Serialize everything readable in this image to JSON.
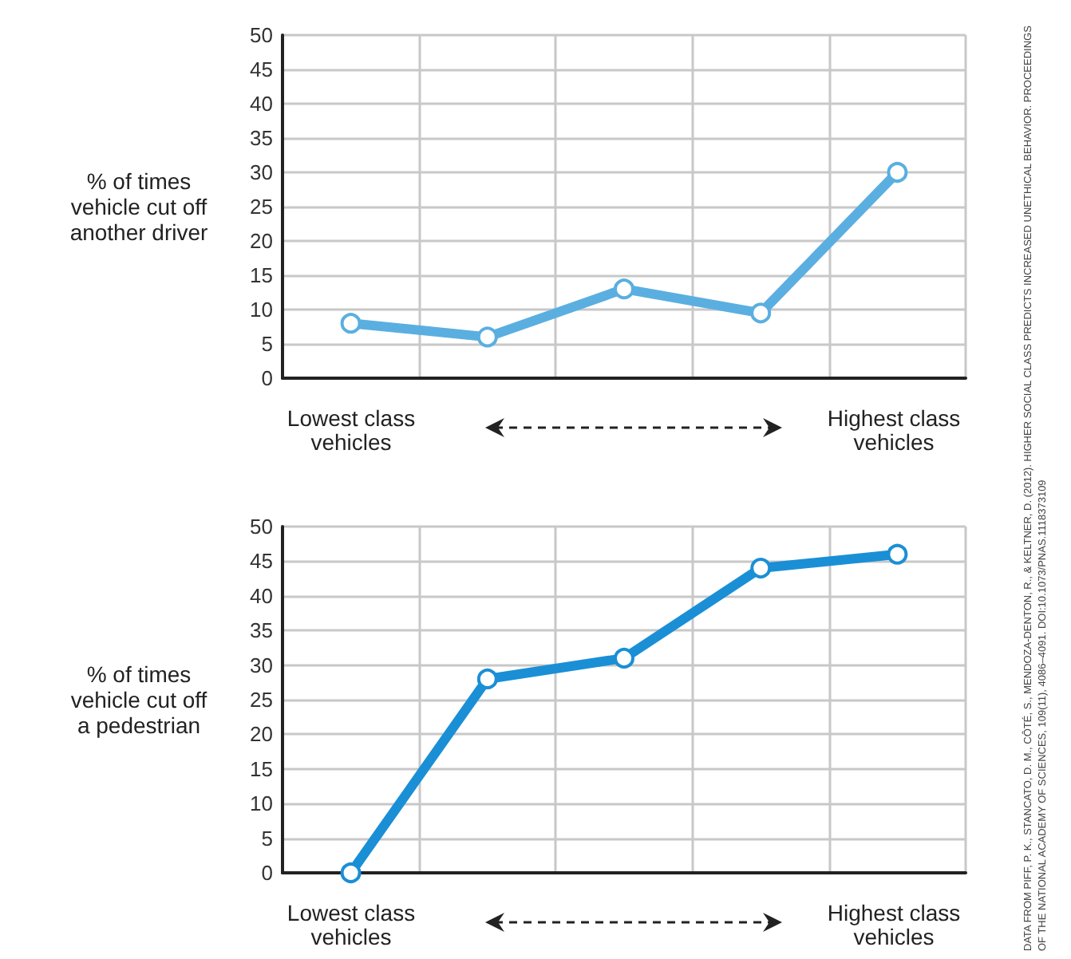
{
  "chart_data": [
    {
      "type": "line",
      "ylabel": "% of times\nvehicle cut off\nanother driver",
      "categories": [
        null,
        null,
        null,
        null,
        null
      ],
      "series": [
        {
          "color": "#5aafe0",
          "values": [
            8,
            6,
            13,
            9.5,
            30
          ]
        }
      ],
      "ylim": [
        0,
        50
      ],
      "yticks": [
        0,
        5,
        10,
        15,
        20,
        25,
        30,
        35,
        40,
        45,
        50
      ],
      "grid": true,
      "marker": "circle",
      "annotations": [
        "Lowest class\nvehicles",
        "Highest class\nvehicles",
        "DATA FROM PIFF, P. K., STANCATO, D. M., CÔTÉ, S., MENDOZA-DENTON, R., & KELTNER, D. (2012). HIGHER SOCIAL CLASS PREDICTS INCREASED UNETHICAL BEHAVIOR. PROCEEDINGS OF THE NATIONAL ACADEMY OF SCIENCES, 109(11), 4086–4091. DOI:10.1073/PNAS.1118373109"
      ]
    },
    {
      "type": "line",
      "ylabel": "% of times\nvehicle cut off\na pedestrian",
      "categories": [
        null,
        null,
        null,
        null,
        null
      ],
      "series": [
        {
          "color": "#1a8fd6",
          "values": [
            0,
            28,
            31,
            44,
            46
          ]
        }
      ],
      "ylim": [
        0,
        50
      ],
      "yticks": [
        0,
        5,
        10,
        15,
        20,
        25,
        30,
        35,
        40,
        45,
        50
      ],
      "grid": true,
      "marker": "circle",
      "annotations": [
        "Lowest class\nvehicles",
        "Highest class\nvehicles"
      ]
    }
  ]
}
